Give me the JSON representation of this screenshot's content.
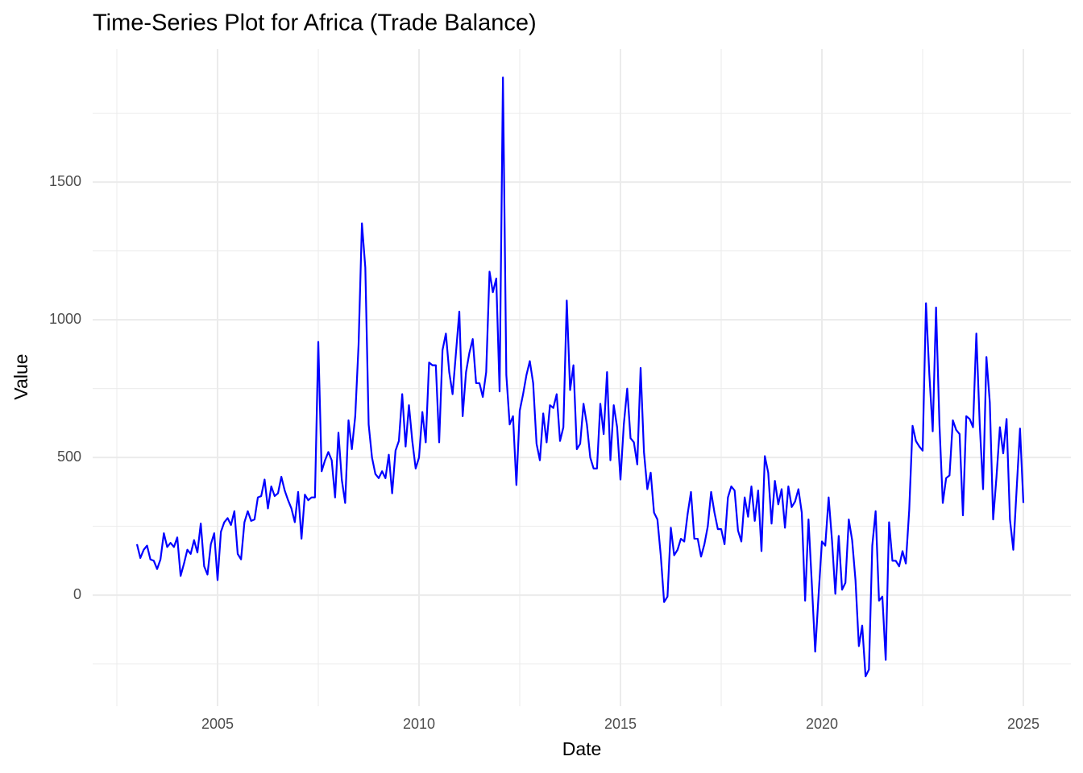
{
  "chart_data": {
    "type": "line",
    "title": "Time-Series Plot for Africa (Trade Balance)",
    "x_label": "Date",
    "y_label": "Value",
    "color": "#0000ff",
    "grid": true,
    "xlim": [
      2001.9,
      2026.18
    ],
    "xticks": [
      2005,
      2010,
      2015,
      2020,
      2025
    ],
    "ylim": [
      -403,
      1983
    ],
    "yticks": [
      0,
      500,
      1000,
      1500
    ],
    "x": [
      2003.0,
      2003.083,
      2003.167,
      2003.25,
      2003.333,
      2003.417,
      2003.5,
      2003.583,
      2003.667,
      2003.75,
      2003.833,
      2003.917,
      2004.0,
      2004.083,
      2004.167,
      2004.25,
      2004.333,
      2004.417,
      2004.5,
      2004.583,
      2004.667,
      2004.75,
      2004.833,
      2004.917,
      2005.0,
      2005.083,
      2005.167,
      2005.25,
      2005.333,
      2005.417,
      2005.5,
      2005.583,
      2005.667,
      2005.75,
      2005.833,
      2005.917,
      2006.0,
      2006.083,
      2006.167,
      2006.25,
      2006.333,
      2006.417,
      2006.5,
      2006.583,
      2006.667,
      2006.75,
      2006.833,
      2006.917,
      2007.0,
      2007.083,
      2007.167,
      2007.25,
      2007.333,
      2007.417,
      2007.5,
      2007.583,
      2007.667,
      2007.75,
      2007.833,
      2007.917,
      2008.0,
      2008.083,
      2008.167,
      2008.25,
      2008.333,
      2008.417,
      2008.5,
      2008.583,
      2008.667,
      2008.75,
      2008.833,
      2008.917,
      2009.0,
      2009.083,
      2009.167,
      2009.25,
      2009.333,
      2009.417,
      2009.5,
      2009.583,
      2009.667,
      2009.75,
      2009.833,
      2009.917,
      2010.0,
      2010.083,
      2010.167,
      2010.25,
      2010.333,
      2010.417,
      2010.5,
      2010.583,
      2010.667,
      2010.75,
      2010.833,
      2010.917,
      2011.0,
      2011.083,
      2011.167,
      2011.25,
      2011.333,
      2011.417,
      2011.5,
      2011.583,
      2011.667,
      2011.75,
      2011.833,
      2011.917,
      2012.0,
      2012.083,
      2012.167,
      2012.25,
      2012.333,
      2012.417,
      2012.5,
      2012.583,
      2012.667,
      2012.75,
      2012.833,
      2012.917,
      2013.0,
      2013.083,
      2013.167,
      2013.25,
      2013.333,
      2013.417,
      2013.5,
      2013.583,
      2013.667,
      2013.75,
      2013.833,
      2013.917,
      2014.0,
      2014.083,
      2014.167,
      2014.25,
      2014.333,
      2014.417,
      2014.5,
      2014.583,
      2014.667,
      2014.75,
      2014.833,
      2014.917,
      2015.0,
      2015.083,
      2015.167,
      2015.25,
      2015.333,
      2015.417,
      2015.5,
      2015.583,
      2015.667,
      2015.75,
      2015.833,
      2015.917,
      2016.0,
      2016.083,
      2016.167,
      2016.25,
      2016.333,
      2016.417,
      2016.5,
      2016.583,
      2016.667,
      2016.75,
      2016.833,
      2016.917,
      2017.0,
      2017.083,
      2017.167,
      2017.25,
      2017.333,
      2017.417,
      2017.5,
      2017.583,
      2017.667,
      2017.75,
      2017.833,
      2017.917,
      2018.0,
      2018.083,
      2018.167,
      2018.25,
      2018.333,
      2018.417,
      2018.5,
      2018.583,
      2018.667,
      2018.75,
      2018.833,
      2018.917,
      2019.0,
      2019.083,
      2019.167,
      2019.25,
      2019.333,
      2019.417,
      2019.5,
      2019.583,
      2019.667,
      2019.75,
      2019.833,
      2019.917,
      2020.0,
      2020.083,
      2020.167,
      2020.25,
      2020.333,
      2020.417,
      2020.5,
      2020.583,
      2020.667,
      2020.75,
      2020.833,
      2020.917,
      2021.0,
      2021.083,
      2021.167,
      2021.25,
      2021.333,
      2021.417,
      2021.5,
      2021.583,
      2021.667,
      2021.75,
      2021.833,
      2021.917,
      2022.0,
      2022.083,
      2022.167,
      2022.25,
      2022.333,
      2022.417,
      2022.5,
      2022.583,
      2022.667,
      2022.75,
      2022.833,
      2022.917,
      2023.0,
      2023.083,
      2023.167,
      2023.25,
      2023.333,
      2023.417,
      2023.5,
      2023.583,
      2023.667,
      2023.75,
      2023.833,
      2023.917,
      2024.0,
      2024.083,
      2024.167,
      2024.25,
      2024.333,
      2024.417,
      2024.5,
      2024.583,
      2024.667,
      2024.75,
      2024.833,
      2024.917,
      2025.0
    ],
    "values": [
      185,
      135,
      165,
      180,
      130,
      125,
      95,
      130,
      225,
      175,
      190,
      175,
      210,
      70,
      115,
      165,
      150,
      200,
      155,
      260,
      105,
      75,
      185,
      225,
      55,
      230,
      265,
      280,
      255,
      305,
      150,
      130,
      265,
      305,
      270,
      275,
      355,
      360,
      420,
      315,
      395,
      360,
      370,
      430,
      380,
      345,
      315,
      265,
      375,
      205,
      365,
      345,
      355,
      355,
      920,
      450,
      490,
      520,
      490,
      355,
      590,
      420,
      335,
      635,
      530,
      650,
      910,
      1350,
      1190,
      620,
      500,
      440,
      425,
      450,
      425,
      510,
      370,
      525,
      560,
      730,
      540,
      690,
      560,
      460,
      500,
      665,
      555,
      845,
      835,
      835,
      555,
      890,
      950,
      810,
      730,
      880,
      1030,
      650,
      810,
      880,
      930,
      770,
      770,
      720,
      810,
      1175,
      1100,
      1150,
      740,
      1880,
      800,
      620,
      650,
      400,
      670,
      730,
      800,
      850,
      770,
      550,
      490,
      660,
      555,
      690,
      680,
      730,
      560,
      610,
      1070,
      745,
      835,
      530,
      550,
      695,
      620,
      500,
      460,
      460,
      695,
      585,
      810,
      490,
      690,
      610,
      420,
      620,
      750,
      570,
      555,
      475,
      825,
      520,
      385,
      445,
      300,
      275,
      145,
      -25,
      -5,
      245,
      145,
      165,
      205,
      195,
      295,
      375,
      205,
      205,
      140,
      185,
      250,
      375,
      300,
      240,
      240,
      185,
      355,
      395,
      380,
      235,
      195,
      355,
      285,
      395,
      270,
      380,
      160,
      505,
      445,
      260,
      415,
      330,
      385,
      245,
      395,
      320,
      340,
      385,
      300,
      -20,
      275,
      40,
      -205,
      0,
      195,
      180,
      355,
      200,
      5,
      215,
      20,
      45,
      275,
      200,
      55,
      -185,
      -110,
      -295,
      -270,
      180,
      305,
      -20,
      -5,
      -235,
      265,
      125,
      125,
      105,
      160,
      115,
      310,
      615,
      560,
      540,
      525,
      1060,
      800,
      595,
      1045,
      620,
      335,
      425,
      435,
      635,
      600,
      585,
      290,
      650,
      640,
      610,
      950,
      620,
      385,
      865,
      700,
      275,
      430,
      610,
      515,
      640,
      275,
      165,
      385,
      605,
      335
    ]
  }
}
